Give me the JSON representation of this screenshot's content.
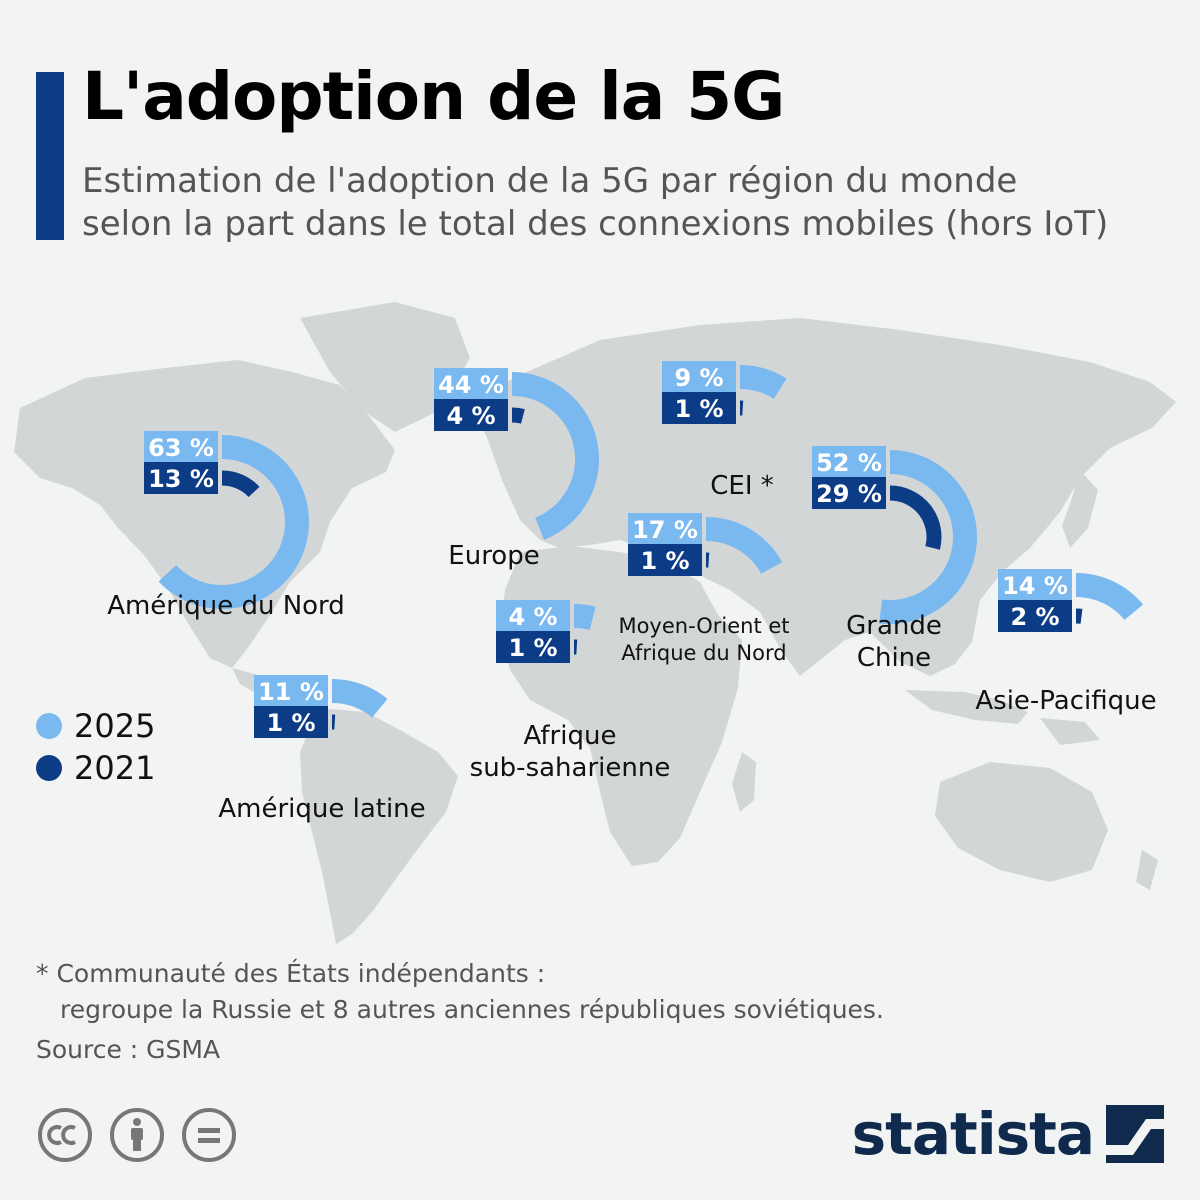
{
  "header": {
    "title": "L'adoption de la 5G",
    "subtitle_line1": "Estimation de l'adoption de la 5G par région du monde",
    "subtitle_line2": "selon la part dans le total des connexions mobiles (hors IoT)"
  },
  "colors": {
    "accent": "#0d3c87",
    "series_2025": "#7ab8f0",
    "series_2021": "#0d3c87",
    "map_land": "#d3d6d6",
    "background": "#f2f4f4"
  },
  "chart_data": {
    "type": "radial-bar",
    "unit": "%",
    "series": [
      {
        "name": "2025",
        "values": [
          63,
          44,
          9,
          52,
          17,
          4,
          14,
          11
        ]
      },
      {
        "name": "2021",
        "values": [
          13,
          4,
          1,
          29,
          1,
          1,
          2,
          1
        ]
      }
    ],
    "categories": [
      "Amérique du Nord",
      "Europe",
      "CEI",
      "Grande Chine",
      "Moyen-Orient et Afrique du Nord",
      "Afrique sub-saharienne",
      "Asie-Pacifique",
      "Amérique latine"
    ],
    "regions": [
      {
        "id": "north-america",
        "label_lines": [
          "Amérique du Nord"
        ],
        "v2025": 63,
        "v2021": 13,
        "l2025": "63 %",
        "l2021": "13 %"
      },
      {
        "id": "europe",
        "label_lines": [
          "Europe"
        ],
        "v2025": 44,
        "v2021": 4,
        "l2025": "44 %",
        "l2021": "4 %"
      },
      {
        "id": "cis",
        "label_lines": [
          "CEI *"
        ],
        "v2025": 9,
        "v2021": 1,
        "l2025": "9 %",
        "l2021": "1 %"
      },
      {
        "id": "greater-china",
        "label_lines": [
          "Grande",
          "Chine"
        ],
        "v2025": 52,
        "v2021": 29,
        "l2025": "52 %",
        "l2021": "29 %"
      },
      {
        "id": "mena",
        "label_lines": [
          "Moyen-Orient et",
          "Afrique du Nord"
        ],
        "v2025": 17,
        "v2021": 1,
        "l2025": "17 %",
        "l2021": "1 %"
      },
      {
        "id": "sub-saharan-africa",
        "label_lines": [
          "Afrique",
          "sub-saharienne"
        ],
        "v2025": 4,
        "v2021": 1,
        "l2025": "4 %",
        "l2021": "1 %"
      },
      {
        "id": "asia-pacific",
        "label_lines": [
          "Asie-Pacifique"
        ],
        "v2025": 14,
        "v2021": 2,
        "l2025": "14 %",
        "l2021": "2 %"
      },
      {
        "id": "latin-america",
        "label_lines": [
          "Amérique latine"
        ],
        "v2025": 11,
        "v2021": 1,
        "l2025": "11 %",
        "l2021": "1 %"
      }
    ],
    "legend": [
      "2025",
      "2021"
    ],
    "legend_position": "left"
  },
  "footnote": {
    "line1": "* Communauté des États indépendants :",
    "line2": "regroupe la Russie et 8 autres anciennes républiques soviétiques."
  },
  "source": "Source : GSMA",
  "brand": "statista",
  "icons": [
    "cc-icon",
    "attribution-icon",
    "no-derivatives-icon",
    "statista-logo-icon"
  ]
}
